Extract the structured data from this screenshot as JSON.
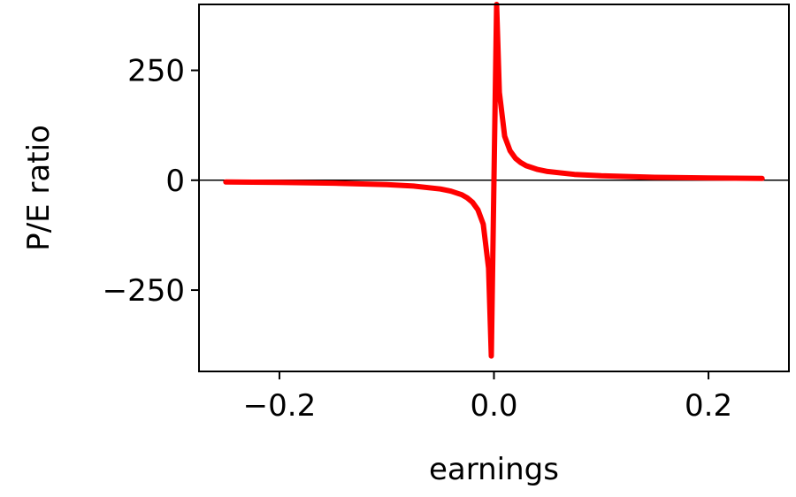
{
  "chart_data": {
    "type": "line",
    "title": "",
    "xlabel": "earnings",
    "ylabel": "P/E ratio",
    "xlim": [
      -0.275,
      0.275
    ],
    "ylim": [
      -435,
      400
    ],
    "x_ticks": [
      -0.2,
      0.0,
      0.2
    ],
    "x_tick_labels": [
      "−0.2",
      "0.0",
      "0.2"
    ],
    "y_ticks": [
      -250,
      0,
      250
    ],
    "y_tick_labels": [
      "−250",
      "0",
      "250"
    ],
    "grid": false,
    "zero_line": true,
    "series": [
      {
        "color": "#ff0000",
        "x": [
          -0.25,
          -0.2,
          -0.15,
          -0.1,
          -0.075,
          -0.05,
          -0.04,
          -0.03,
          -0.025,
          -0.02,
          -0.015,
          -0.01,
          -0.005,
          -0.0025,
          0.0025,
          0.005,
          0.01,
          0.015,
          0.02,
          0.025,
          0.03,
          0.04,
          0.05,
          0.075,
          0.1,
          0.15,
          0.2,
          0.25
        ],
        "y": [
          -4,
          -5,
          -6.7,
          -10,
          -13.3,
          -20,
          -25,
          -33,
          -40,
          -50,
          -67,
          -100,
          -200,
          -400,
          400,
          200,
          100,
          67,
          50,
          40,
          33,
          25,
          20,
          13.3,
          10,
          6.7,
          5,
          4
        ]
      }
    ]
  }
}
